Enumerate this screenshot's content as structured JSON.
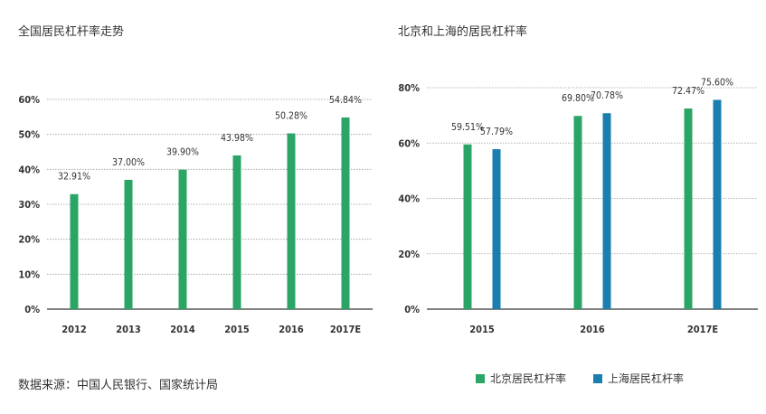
{
  "colors": {
    "green": "#2aa566",
    "blue": "#1a7fae",
    "axis": "#333333",
    "grid": "#9a9a9a"
  },
  "chart_data": [
    {
      "type": "bar",
      "title": "全国居民杠杆率走势",
      "categories": [
        "2012",
        "2013",
        "2014",
        "2015",
        "2016",
        "2017E"
      ],
      "series": [
        {
          "values": [
            32.91,
            37.0,
            39.9,
            43.98,
            50.28,
            54.84
          ],
          "labels": [
            "32.91%",
            "37.00%",
            "39.90%",
            "43.98%",
            "50.28%",
            "54.84%"
          ]
        }
      ],
      "ylim": [
        0,
        60
      ],
      "yticks": [
        0,
        10,
        20,
        30,
        40,
        50,
        60
      ],
      "ytick_labels": [
        "0%",
        "10%",
        "20%",
        "30%",
        "40%",
        "50%",
        "60%"
      ],
      "grid": true
    },
    {
      "type": "bar",
      "title": "北京和上海的居民杠杆率",
      "categories": [
        "2015",
        "2016",
        "2017E"
      ],
      "series": [
        {
          "name": "北京居民杠杆率",
          "values": [
            59.51,
            69.8,
            72.47
          ],
          "labels": [
            "59.51%",
            "69.80%",
            "72.47%"
          ]
        },
        {
          "name": "上海居民杠杆率",
          "values": [
            57.79,
            70.78,
            75.6
          ],
          "labels": [
            "57.79%",
            "70.78%",
            "75.60%"
          ]
        }
      ],
      "ylim": [
        0,
        80
      ],
      "yticks": [
        0,
        20,
        40,
        60,
        80
      ],
      "ytick_labels": [
        "0%",
        "20%",
        "40%",
        "60%",
        "80%"
      ],
      "grid": true,
      "legend": "bottom"
    }
  ],
  "source": "数据来源：中国人民银行、国家统计局"
}
